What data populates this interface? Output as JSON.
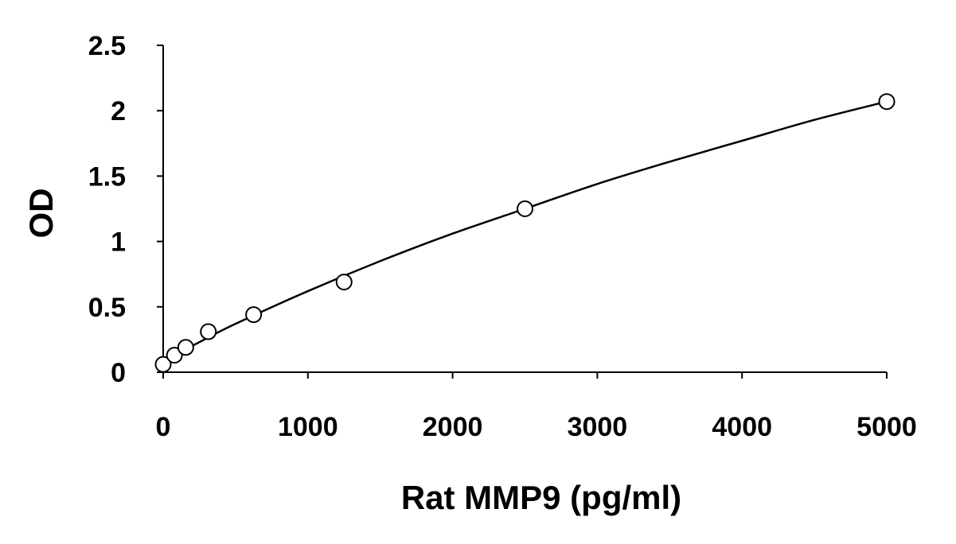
{
  "chart_data": {
    "type": "scatter",
    "title": "",
    "xlabel": "Rat MMP9 (pg/ml)",
    "ylabel": "OD",
    "xlim": [
      0,
      5000
    ],
    "ylim": [
      0,
      2.5
    ],
    "x_ticks": [
      "0",
      "1000",
      "2000",
      "3000",
      "4000",
      "5000"
    ],
    "y_ticks": [
      "0",
      "0.5",
      "1",
      "1.5",
      "2",
      "2.5"
    ],
    "grid": false,
    "legend": "none",
    "series": [
      {
        "marker": "open-circle",
        "x": [
          0,
          78,
          156,
          312,
          625,
          1250,
          2500,
          5000
        ],
        "y": [
          0.06,
          0.13,
          0.19,
          0.31,
          0.44,
          0.69,
          1.25,
          2.07
        ]
      }
    ],
    "fit_curve": {
      "x": [
        0,
        250,
        500,
        1000,
        1500,
        2000,
        2500,
        3000,
        3500,
        4000,
        4500,
        5000
      ],
      "y": [
        0.08,
        0.23,
        0.37,
        0.62,
        0.85,
        1.06,
        1.25,
        1.44,
        1.61,
        1.77,
        1.93,
        2.07
      ]
    }
  }
}
